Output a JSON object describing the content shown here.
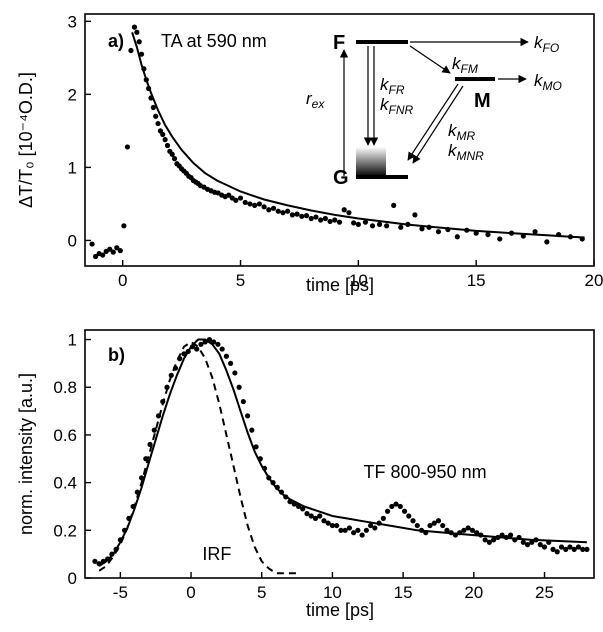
{
  "chart_data": [
    {
      "type": "scatter",
      "panel_label": "a)",
      "annotation": "TA at 590 nm",
      "xlabel": "time [ps]",
      "ylabel": "ΔT/T₀ [10⁻⁴O.D.]",
      "xlim": [
        -1.6,
        20
      ],
      "ylim": [
        -0.35,
        3.1
      ],
      "xticks": [
        0,
        5,
        10,
        15,
        20
      ],
      "yticks": [
        0,
        1,
        2,
        3
      ],
      "grid": false,
      "series": [
        {
          "style": "markers",
          "x": [
            -1.3,
            -1.15,
            -1.0,
            -0.85,
            -0.7,
            -0.55,
            -0.4,
            -0.25,
            -0.1,
            0.05,
            0.2,
            0.35,
            0.5,
            0.6,
            0.7,
            0.8,
            0.9,
            1.0,
            1.1,
            1.2,
            1.3,
            1.4,
            1.5,
            1.6,
            1.7,
            1.8,
            1.9,
            2.0,
            2.1,
            2.2,
            2.3,
            2.4,
            2.5,
            2.6,
            2.7,
            2.8,
            2.9,
            3.0,
            3.1,
            3.2,
            3.3,
            3.45,
            3.6,
            3.75,
            3.9,
            4.05,
            4.2,
            4.35,
            4.5,
            4.65,
            4.8,
            5.0,
            5.2,
            5.4,
            5.6,
            5.8,
            6.0,
            6.2,
            6.4,
            6.6,
            6.8,
            7.0,
            7.2,
            7.4,
            7.6,
            7.8,
            8.0,
            8.2,
            8.4,
            8.6,
            8.8,
            9.0,
            9.2,
            9.4,
            9.6,
            9.8,
            10.0,
            10.3,
            10.6,
            10.9,
            11.2,
            11.5,
            11.8,
            12.1,
            12.4,
            12.7,
            13.0,
            13.4,
            13.8,
            14.2,
            14.6,
            15.0,
            15.5,
            16.0,
            16.5,
            17.0,
            17.5,
            18.0,
            18.5,
            19.0,
            19.5
          ],
          "y": [
            -0.05,
            -0.22,
            -0.18,
            -0.2,
            -0.15,
            -0.12,
            -0.16,
            -0.1,
            -0.14,
            0.2,
            1.28,
            2.6,
            2.92,
            2.85,
            2.72,
            2.55,
            2.35,
            2.2,
            2.08,
            1.95,
            1.82,
            1.7,
            1.6,
            1.5,
            1.45,
            1.38,
            1.3,
            1.22,
            1.18,
            1.12,
            1.05,
            1.02,
            0.98,
            0.95,
            0.92,
            0.88,
            0.86,
            0.82,
            0.8,
            0.78,
            0.75,
            0.73,
            0.7,
            0.68,
            0.66,
            0.65,
            0.62,
            0.6,
            0.62,
            0.58,
            0.55,
            0.58,
            0.52,
            0.5,
            0.48,
            0.5,
            0.46,
            0.42,
            0.44,
            0.4,
            0.38,
            0.4,
            0.35,
            0.36,
            0.33,
            0.34,
            0.3,
            0.32,
            0.28,
            0.3,
            0.26,
            0.28,
            0.25,
            0.42,
            0.38,
            0.24,
            0.22,
            0.25,
            0.2,
            0.22,
            0.2,
            0.48,
            0.18,
            0.22,
            0.35,
            0.16,
            0.18,
            0.12,
            0.15,
            0.05,
            0.14,
            0.1,
            0.08,
            0.02,
            0.1,
            0.06,
            0.12,
            -0.02,
            0.08,
            0.05,
            0.02
          ]
        },
        {
          "style": "fit-line",
          "x": [
            0.4,
            0.6,
            0.8,
            1.0,
            1.2,
            1.5,
            1.8,
            2.1,
            2.5,
            3.0,
            3.5,
            4.0,
            5.0,
            6.0,
            7.0,
            8.0,
            9.0,
            10.0,
            11.0,
            12.0,
            13.0,
            14.0,
            15.0,
            16.0,
            17.0,
            18.0,
            19.0,
            19.6
          ],
          "y": [
            2.85,
            2.65,
            2.4,
            2.2,
            2.02,
            1.78,
            1.58,
            1.42,
            1.24,
            1.06,
            0.92,
            0.82,
            0.67,
            0.56,
            0.48,
            0.41,
            0.35,
            0.3,
            0.26,
            0.22,
            0.19,
            0.16,
            0.13,
            0.11,
            0.09,
            0.07,
            0.05,
            0.04
          ]
        }
      ]
    },
    {
      "type": "scatter",
      "panel_label": "b)",
      "xlabel": "time [ps]",
      "ylabel": "norm. intensity [a.u.]",
      "xlim": [
        -7.5,
        28.5
      ],
      "ylim": [
        0,
        1.04
      ],
      "xticks": [
        -5,
        0,
        5,
        10,
        15,
        20,
        25
      ],
      "yticks": [
        0,
        0.2,
        0.4,
        0.6,
        0.8,
        1
      ],
      "grid": false,
      "annotations": [
        {
          "text": "TF 800-950 nm",
          "x": 12.2,
          "y": 0.42
        },
        {
          "text": "IRF",
          "x": 0.8,
          "y": 0.075
        }
      ],
      "series": [
        {
          "style": "markers",
          "x": [
            -6.8,
            -6.5,
            -6.2,
            -5.9,
            -5.6,
            -5.3,
            -5.0,
            -4.7,
            -4.4,
            -4.1,
            -3.8,
            -3.5,
            -3.2,
            -2.9,
            -2.6,
            -2.3,
            -2.0,
            -1.7,
            -1.4,
            -1.1,
            -0.8,
            -0.5,
            -0.2,
            0.1,
            0.4,
            0.7,
            1.0,
            1.3,
            1.6,
            1.9,
            2.2,
            2.5,
            2.8,
            3.1,
            3.4,
            3.7,
            4.0,
            4.3,
            4.6,
            4.9,
            5.2,
            5.5,
            5.8,
            6.1,
            6.4,
            6.7,
            7.0,
            7.3,
            7.6,
            7.9,
            8.2,
            8.5,
            8.8,
            9.1,
            9.4,
            9.7,
            10.0,
            10.3,
            10.6,
            10.9,
            11.2,
            11.5,
            11.8,
            12.1,
            12.4,
            12.7,
            13.0,
            13.3,
            13.6,
            13.9,
            14.2,
            14.5,
            14.8,
            15.1,
            15.4,
            15.7,
            16.0,
            16.3,
            16.6,
            16.9,
            17.2,
            17.5,
            17.8,
            18.1,
            18.4,
            18.7,
            19.0,
            19.3,
            19.6,
            19.9,
            20.2,
            20.5,
            20.8,
            21.1,
            21.4,
            21.7,
            22.0,
            22.3,
            22.6,
            22.9,
            23.2,
            23.5,
            23.8,
            24.1,
            24.4,
            24.7,
            25.0,
            25.3,
            25.6,
            25.9,
            26.2,
            26.5,
            26.8,
            27.1,
            27.4,
            27.7,
            28.0
          ],
          "y": [
            0.07,
            0.06,
            0.07,
            0.08,
            0.1,
            0.12,
            0.16,
            0.2,
            0.25,
            0.3,
            0.36,
            0.42,
            0.5,
            0.56,
            0.62,
            0.68,
            0.74,
            0.8,
            0.85,
            0.88,
            0.92,
            0.94,
            0.95,
            0.97,
            0.96,
            0.98,
            0.99,
            1.0,
            0.99,
            0.98,
            0.96,
            0.93,
            0.9,
            0.86,
            0.8,
            0.74,
            0.68,
            0.62,
            0.55,
            0.5,
            0.46,
            0.42,
            0.4,
            0.38,
            0.36,
            0.34,
            0.32,
            0.31,
            0.3,
            0.29,
            0.27,
            0.26,
            0.25,
            0.26,
            0.24,
            0.23,
            0.22,
            0.22,
            0.2,
            0.2,
            0.21,
            0.19,
            0.2,
            0.18,
            0.2,
            0.22,
            0.21,
            0.23,
            0.25,
            0.28,
            0.3,
            0.31,
            0.3,
            0.28,
            0.26,
            0.24,
            0.22,
            0.2,
            0.19,
            0.22,
            0.23,
            0.24,
            0.22,
            0.2,
            0.19,
            0.18,
            0.19,
            0.2,
            0.21,
            0.2,
            0.19,
            0.18,
            0.16,
            0.15,
            0.16,
            0.17,
            0.18,
            0.17,
            0.18,
            0.16,
            0.17,
            0.15,
            0.14,
            0.15,
            0.16,
            0.14,
            0.13,
            0.15,
            0.12,
            0.11,
            0.13,
            0.12,
            0.13,
            0.12,
            0.13,
            0.12,
            0.12
          ]
        },
        {
          "style": "fit-line",
          "x": [
            -6.5,
            -6.0,
            -5.5,
            -5.0,
            -4.5,
            -4.0,
            -3.5,
            -3.0,
            -2.5,
            -2.0,
            -1.5,
            -1.0,
            -0.5,
            0.0,
            0.5,
            1.0,
            1.5,
            2.0,
            2.5,
            3.0,
            3.5,
            4.0,
            4.5,
            5.0,
            5.5,
            6.0,
            6.5,
            7.0,
            8.0,
            9.0,
            10.0,
            11.0,
            12.0,
            14.0,
            16.0,
            18.0,
            20.0,
            22.0,
            24.0,
            26.0,
            28.0
          ],
          "y": [
            0.05,
            0.07,
            0.1,
            0.15,
            0.21,
            0.29,
            0.38,
            0.48,
            0.58,
            0.68,
            0.77,
            0.85,
            0.92,
            0.97,
            1.0,
            1.0,
            0.98,
            0.94,
            0.87,
            0.79,
            0.7,
            0.61,
            0.53,
            0.47,
            0.42,
            0.38,
            0.35,
            0.33,
            0.3,
            0.28,
            0.26,
            0.25,
            0.24,
            0.22,
            0.2,
            0.19,
            0.18,
            0.17,
            0.16,
            0.155,
            0.15
          ]
        },
        {
          "style": "irf-dashed",
          "x": [
            -6.5,
            -6.0,
            -5.5,
            -5.0,
            -4.5,
            -4.0,
            -3.5,
            -3.0,
            -2.5,
            -2.0,
            -1.5,
            -1.0,
            -0.5,
            0.0,
            0.5,
            1.0,
            1.5,
            2.0,
            2.5,
            3.0,
            3.5,
            4.0,
            4.5,
            5.0,
            5.5,
            6.0,
            6.5,
            7.0,
            7.5
          ],
          "y": [
            0.03,
            0.05,
            0.09,
            0.14,
            0.21,
            0.3,
            0.4,
            0.51,
            0.62,
            0.73,
            0.83,
            0.91,
            0.97,
            0.99,
            0.97,
            0.92,
            0.84,
            0.73,
            0.6,
            0.47,
            0.34,
            0.22,
            0.13,
            0.07,
            0.04,
            0.02,
            0.02,
            0.02,
            0.02
          ]
        }
      ]
    }
  ],
  "inset": {
    "states": {
      "F": "F",
      "M": "M",
      "G": "G"
    },
    "rates": [
      {
        "main": "k",
        "sub": "FO"
      },
      {
        "main": "k",
        "sub": "FM"
      },
      {
        "main": "k",
        "sub": "MO"
      },
      {
        "main": "k",
        "sub": "FR"
      },
      {
        "main": "k",
        "sub": "FNR"
      },
      {
        "main": "k",
        "sub": "MR"
      },
      {
        "main": "k",
        "sub": "MNR"
      },
      {
        "main": "r",
        "sub": "ex"
      }
    ]
  }
}
